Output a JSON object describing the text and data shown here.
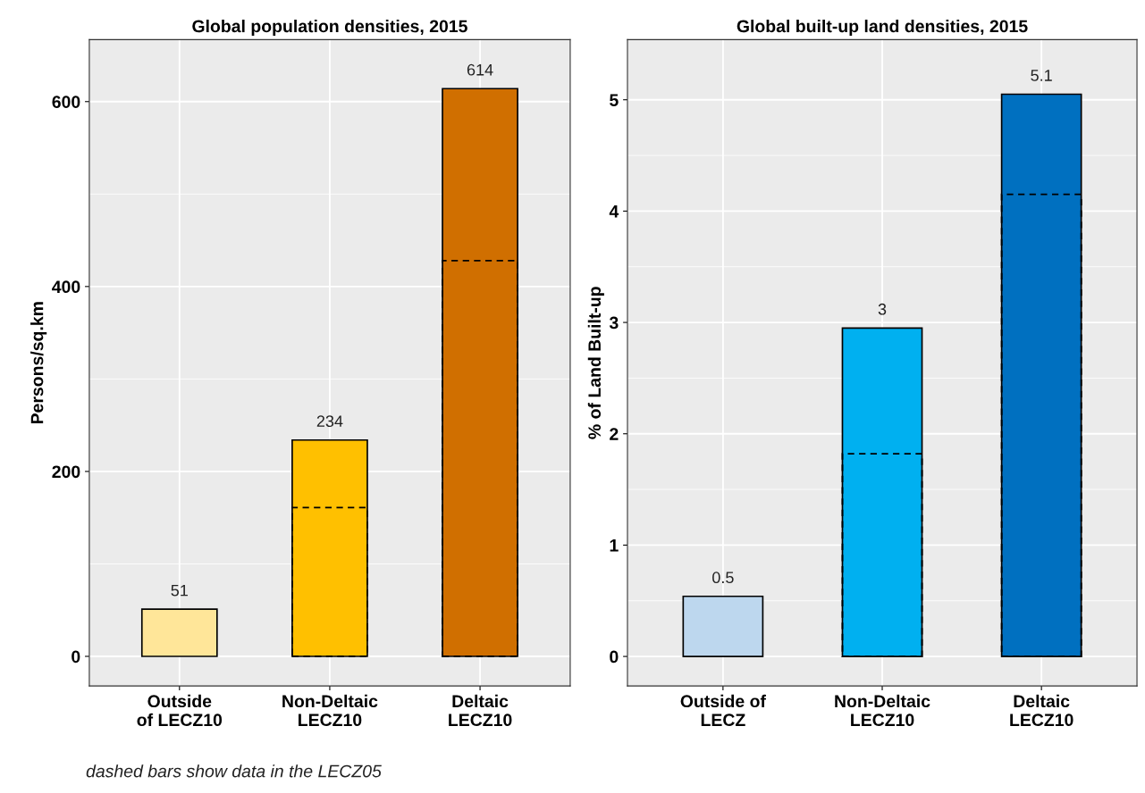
{
  "chart_data": [
    {
      "type": "bar",
      "title": "Global population densities, 2015",
      "ylabel": "Persons/sq.km",
      "categories": [
        "Outside\nof LECZ10",
        "Non-Deltaic\nLECZ10",
        "Deltaic\nLECZ10"
      ],
      "series": [
        {
          "values": [
            51,
            234,
            614
          ],
          "colors": [
            "#ffe699",
            "#ffc000",
            "#d06f00"
          ],
          "data_labels": true
        },
        {
          "type": "bar",
          "values": [
            null,
            161,
            428
          ],
          "color": "#000000",
          "line_style": "dashed"
        }
      ],
      "ylim": [
        -32,
        667
      ],
      "yticks": [
        0,
        200,
        400,
        600
      ],
      "grid": true,
      "annotations": [
        "dashed bars show data in the LECZ05"
      ]
    },
    {
      "type": "bar",
      "title": "Global built-up land densities, 2015",
      "ylabel": "% of Land Built-up",
      "categories": [
        "Outside of\nLECZ",
        "Non-Deltaic\nLECZ10",
        "Deltaic\nLECZ10"
      ],
      "series": [
        {
          "values": [
            0.54,
            2.95,
            5.05
          ],
          "colors": [
            "#bdd7ee",
            "#00b0f0",
            "#0070c0"
          ],
          "value_labels": [
            "0.5",
            "3",
            "5.1"
          ]
        },
        {
          "type": "bar",
          "values": [
            null,
            1.82,
            4.15
          ],
          "color": "#000000",
          "line_style": "dashed"
        }
      ],
      "ylim": [
        -0.265,
        5.54
      ],
      "yticks": [
        0,
        1,
        2,
        3,
        4,
        5
      ],
      "grid": true
    }
  ]
}
